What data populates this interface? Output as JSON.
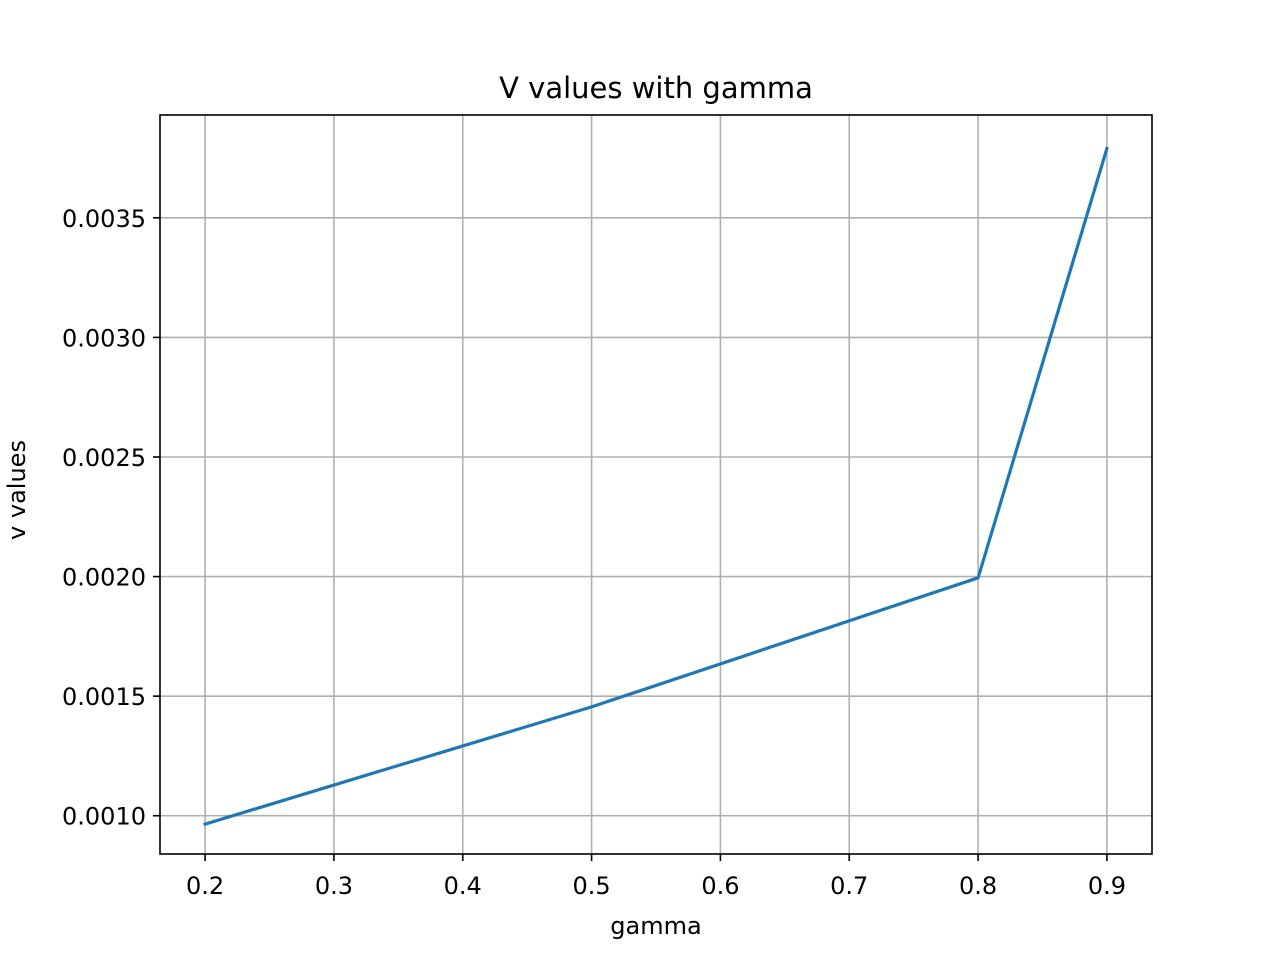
{
  "chart_data": {
    "type": "line",
    "title": "V values with gamma",
    "xlabel": "gamma",
    "ylabel": "v values",
    "xlim": [
      0.165,
      0.935
    ],
    "ylim": [
      0.00084,
      0.00393
    ],
    "grid": true,
    "x_ticks": [
      0.2,
      0.3,
      0.4,
      0.5,
      0.6,
      0.7,
      0.8,
      0.9
    ],
    "x_tick_labels": [
      "0.2",
      "0.3",
      "0.4",
      "0.5",
      "0.6",
      "0.7",
      "0.8",
      "0.9"
    ],
    "y_ticks": [
      0.001,
      0.0015,
      0.002,
      0.0025,
      0.003,
      0.0035
    ],
    "y_tick_labels": [
      "0.0010",
      "0.0015",
      "0.0020",
      "0.0025",
      "0.0030",
      "0.0035"
    ],
    "series": [
      {
        "color": "#1f77b4",
        "x": [
          0.2,
          0.5,
          0.8,
          0.9
        ],
        "y": [
          0.000965,
          0.001455,
          0.001995,
          0.00379
        ]
      }
    ]
  }
}
